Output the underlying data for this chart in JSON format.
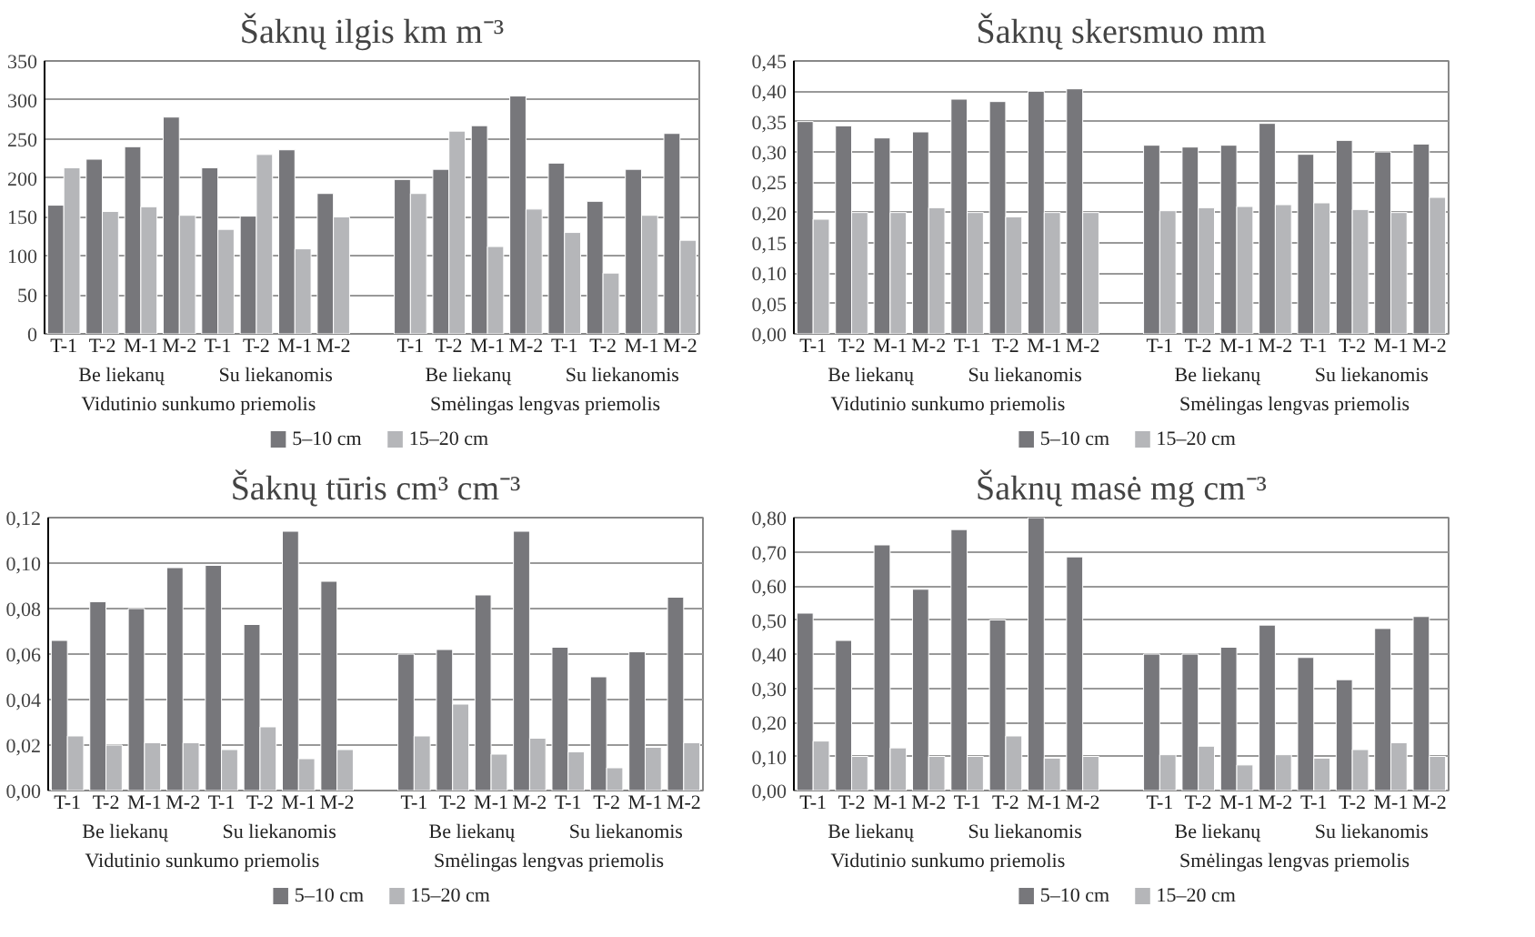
{
  "chart_data": [
    {
      "type": "bar",
      "title": "Šaknų ilgis km m⁻³",
      "categories": [
        "T-1",
        "T-2",
        "M-1",
        "M-2",
        "T-1",
        "T-2",
        "M-1",
        "M-2",
        null,
        "T-1",
        "T-2",
        "M-1",
        "M-2",
        "T-1",
        "T-2",
        "M-1",
        "M-2"
      ],
      "series": [
        {
          "name": "5–10 cm",
          "color": "#77777b",
          "values": [
            165,
            224,
            240,
            278,
            213,
            151,
            236,
            180,
            null,
            198,
            211,
            267,
            305,
            219,
            170,
            211,
            257
          ]
        },
        {
          "name": "15–20 cm",
          "color": "#b5b6b9",
          "values": [
            213,
            157,
            163,
            152,
            134,
            230,
            109,
            150,
            null,
            180,
            260,
            112,
            160,
            130,
            78,
            152,
            120
          ]
        }
      ],
      "ylim": [
        0,
        350
      ],
      "yticks": [
        0,
        50,
        100,
        150,
        200,
        250,
        300,
        350
      ],
      "grid": "y",
      "legend": "bottom",
      "annotations": [
        "Be liekanų",
        "Su liekanomis",
        "Vidutinio sunkumo priemolis",
        "Be liekanų",
        "Su liekanomis",
        "Smėlingas lengvas priemolis"
      ]
    },
    {
      "type": "bar",
      "title": "Šaknų skersmuo mm",
      "categories": [
        "T-1",
        "T-2",
        "M-1",
        "M-2",
        "T-1",
        "T-2",
        "M-1",
        "M-2",
        null,
        "T-1",
        "T-2",
        "M-1",
        "M-2",
        "T-1",
        "T-2",
        "M-1",
        "M-2"
      ],
      "series": [
        {
          "name": "5–10 cm",
          "color": "#77777b",
          "values": [
            0.35,
            0.343,
            0.323,
            0.333,
            0.387,
            0.383,
            0.4,
            0.404,
            null,
            0.311,
            0.308,
            0.311,
            0.347,
            0.296,
            0.319,
            0.3,
            0.313
          ]
        },
        {
          "name": "15–20 cm",
          "color": "#b5b6b9",
          "values": [
            0.189,
            0.2,
            0.2,
            0.208,
            0.2,
            0.193,
            0.2,
            0.2,
            null,
            0.203,
            0.208,
            0.21,
            0.213,
            0.216,
            0.205,
            0.2,
            0.225
          ]
        }
      ],
      "ylim": [
        0,
        0.45
      ],
      "yticks": [
        {
          "value": 0,
          "label": "0,00"
        },
        {
          "value": 0.05,
          "label": "0,05"
        },
        {
          "value": 0.1,
          "label": "0,10"
        },
        {
          "value": 0.15,
          "label": "0,15"
        },
        {
          "value": 0.2,
          "label": "0,20"
        },
        {
          "value": 0.25,
          "label": "0,25"
        },
        {
          "value": 0.3,
          "label": "0,30"
        },
        {
          "value": 0.35,
          "label": "0,35"
        },
        {
          "value": 0.4,
          "label": "0,40"
        },
        {
          "value": 0.45,
          "label": "0,45"
        }
      ],
      "grid": "y",
      "legend": "bottom",
      "annotations": [
        "Be liekanų",
        "Su liekanomis",
        "Vidutinio sunkumo priemolis",
        "Be liekanų",
        "Su liekanomis",
        "Smėlingas lengvas priemolis"
      ]
    },
    {
      "type": "bar",
      "title": "Šaknų tūris cm³ cm⁻³",
      "categories": [
        "T-1",
        "T-2",
        "M-1",
        "M-2",
        "T-1",
        "T-2",
        "M-1",
        "M-2",
        null,
        "T-1",
        "T-2",
        "M-1",
        "M-2",
        "T-1",
        "T-2",
        "M-1",
        "M-2"
      ],
      "series": [
        {
          "name": "5–10 cm",
          "color": "#77777b",
          "values": [
            0.066,
            0.083,
            0.08,
            0.098,
            0.099,
            0.073,
            0.114,
            0.092,
            null,
            0.06,
            0.062,
            0.086,
            0.114,
            0.063,
            0.05,
            0.061,
            0.085
          ]
        },
        {
          "name": "15–20 cm",
          "color": "#b5b6b9",
          "values": [
            0.024,
            0.02,
            0.021,
            0.021,
            0.018,
            0.028,
            0.014,
            0.018,
            null,
            0.024,
            0.038,
            0.016,
            0.023,
            0.017,
            0.01,
            0.019,
            0.021
          ]
        }
      ],
      "ylim": [
        0,
        0.12
      ],
      "yticks": [
        {
          "value": 0,
          "label": "0,00"
        },
        {
          "value": 0.02,
          "label": "0,02"
        },
        {
          "value": 0.04,
          "label": "0,04"
        },
        {
          "value": 0.06,
          "label": "0,06"
        },
        {
          "value": 0.08,
          "label": "0,08"
        },
        {
          "value": 0.1,
          "label": "0,10"
        },
        {
          "value": 0.12,
          "label": "0,12"
        }
      ],
      "grid": "y",
      "legend": "bottom",
      "annotations": [
        "Be liekanų",
        "Su liekanomis",
        "Vidutinio sunkumo priemolis",
        "Be liekanų",
        "Su liekanomis",
        "Smėlingas lengvas priemolis"
      ]
    },
    {
      "type": "bar",
      "title": "Šaknų masė mg cm⁻³",
      "categories": [
        "T-1",
        "T-2",
        "M-1",
        "M-2",
        "T-1",
        "T-2",
        "M-1",
        "M-2",
        null,
        "T-1",
        "T-2",
        "M-1",
        "M-2",
        "T-1",
        "T-2",
        "M-1",
        "M-2"
      ],
      "series": [
        {
          "name": "5–10 cm",
          "color": "#77777b",
          "values": [
            0.52,
            0.44,
            0.72,
            0.59,
            0.765,
            0.5,
            0.8,
            0.685,
            null,
            0.4,
            0.4,
            0.42,
            0.485,
            0.39,
            0.325,
            0.475,
            0.51
          ]
        },
        {
          "name": "15–20 cm",
          "color": "#b5b6b9",
          "values": [
            0.145,
            0.1,
            0.125,
            0.1,
            0.1,
            0.16,
            0.095,
            0.1,
            null,
            0.105,
            0.13,
            0.075,
            0.105,
            0.095,
            0.12,
            0.14,
            0.1
          ]
        }
      ],
      "ylim": [
        0,
        0.8
      ],
      "yticks": [
        {
          "value": 0,
          "label": "0,00"
        },
        {
          "value": 0.1,
          "label": "0,10"
        },
        {
          "value": 0.2,
          "label": "0,20"
        },
        {
          "value": 0.3,
          "label": "0,30"
        },
        {
          "value": 0.4,
          "label": "0,40"
        },
        {
          "value": 0.5,
          "label": "0,50"
        },
        {
          "value": 0.6,
          "label": "0,60"
        },
        {
          "value": 0.7,
          "label": "0,70"
        },
        {
          "value": 0.8,
          "label": "0,80"
        }
      ],
      "grid": "y",
      "legend": "bottom",
      "annotations": [
        "Be liekanų",
        "Su liekanomis",
        "Vidutinio sunkumo priemolis",
        "Be liekanų",
        "Su liekanomis",
        "Smėlingas lengvas priemolis"
      ]
    }
  ]
}
